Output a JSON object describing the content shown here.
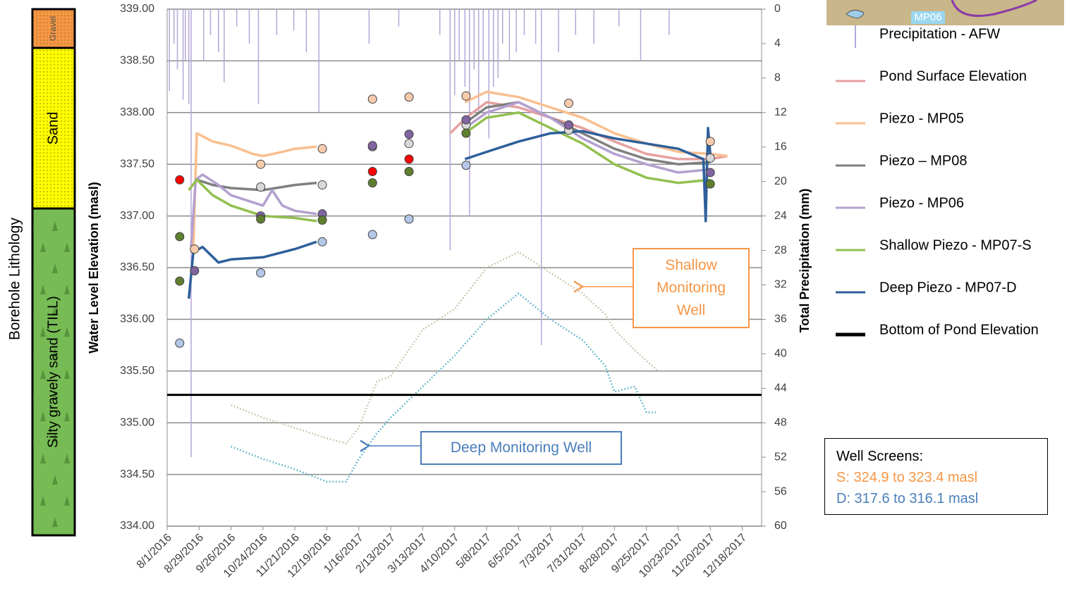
{
  "chart_data": {
    "type": "line",
    "y_title": "Water Level Elevation (masl)",
    "y2_title": "Total Precipitation (mm)",
    "xlim": [
      "8/1/2016",
      "1/4/2018"
    ],
    "xticks": [
      "8/1/2016",
      "8/29/2016",
      "9/26/2016",
      "10/24/2016",
      "11/21/2016",
      "12/19/2016",
      "1/16/2017",
      "2/13/2017",
      "3/13/2017",
      "4/10/2017",
      "5/8/2017",
      "6/5/2017",
      "7/3/2017",
      "7/31/2017",
      "8/28/2017",
      "9/25/2017",
      "10/23/2017",
      "11/20/2017",
      "12/18/2017"
    ],
    "ylim": [
      334,
      339
    ],
    "yticks": [
      {
        "value": 334,
        "label": "334.00"
      },
      {
        "value": 334.5,
        "label": "334.50"
      },
      {
        "value": 335,
        "label": "335.00"
      },
      {
        "value": 335.5,
        "label": "335.50"
      },
      {
        "value": 336,
        "label": "336.00"
      },
      {
        "value": 336.5,
        "label": "336.50"
      },
      {
        "value": 337,
        "label": "337.00"
      },
      {
        "value": 337.5,
        "label": "337.50"
      },
      {
        "value": 338,
        "label": "338.00"
      },
      {
        "value": 338.5,
        "label": "338.50"
      },
      {
        "value": 339,
        "label": "339.00"
      }
    ],
    "y2lim": [
      0,
      60
    ],
    "y2_inverted": true,
    "y2ticks": [
      0,
      4,
      8,
      12,
      16,
      20,
      24,
      28,
      32,
      36,
      40,
      44,
      48,
      52,
      56,
      60
    ],
    "grid": true,
    "precipitation": {
      "name": "Precipitation - AFW",
      "color": "#b4a7d6",
      "axis": "y2",
      "x": [
        "8/3/2016",
        "8/7/2016",
        "8/10/2016",
        "8/15/2016",
        "8/17/2016",
        "8/20/2016",
        "8/22/2016",
        "9/2/2016",
        "9/8/2016",
        "9/15/2016",
        "9/20/2016",
        "10/1/2016",
        "10/12/2016",
        "10/20/2016",
        "11/5/2016",
        "11/20/2016",
        "12/1/2016",
        "12/12/2016",
        "1/25/2017",
        "2/20/2017",
        "3/28/2017",
        "4/6/2017",
        "4/10/2017",
        "4/14/2017",
        "4/19/2017",
        "4/23/2017",
        "4/27/2017",
        "5/1/2017",
        "5/5/2017",
        "5/10/2017",
        "5/14/2017",
        "5/18/2017",
        "5/22/2017",
        "5/28/2017",
        "6/3/2017",
        "6/10/2017",
        "6/20/2017",
        "6/25/2017",
        "7/10/2017",
        "7/25/2017",
        "8/10/2017",
        "9/1/2017",
        "9/20/2017",
        "10/15/2017"
      ],
      "values": [
        9.5,
        4,
        7,
        10.5,
        6,
        11,
        52,
        6,
        3,
        5,
        8.5,
        2,
        4,
        11,
        3,
        2.5,
        5,
        12,
        4,
        2,
        3,
        28,
        10,
        6,
        9,
        24,
        7,
        12,
        6,
        15,
        9,
        8,
        4,
        6,
        5,
        3,
        4,
        39,
        5,
        3,
        4,
        2,
        6,
        3
      ]
    },
    "series": [
      {
        "name": "Pond Surface Elevation",
        "color": "#e6a0a0",
        "x": [
          "4/6/2017",
          "4/20/2017",
          "5/8/2017",
          "6/5/2017",
          "7/3/2017",
          "7/31/2017",
          "8/28/2017",
          "9/25/2017",
          "10/23/2017",
          "11/20/2017",
          "12/5/2017"
        ],
        "values": [
          337.8,
          337.95,
          338.1,
          338.05,
          337.95,
          337.85,
          337.72,
          337.6,
          337.55,
          337.55,
          337.58
        ],
        "manual": {
          "color": "#ff0000",
          "x": [
            "8/12/2016",
            "1/28/2017",
            "3/1/2017"
          ],
          "values": [
            337.35,
            337.43,
            337.55
          ]
        }
      },
      {
        "name": "Piezo - MP05",
        "color": "#f9bf8f",
        "x": [
          "8/24/2016",
          "8/27/2016",
          "9/10/2016",
          "9/26/2016",
          "10/15/2016",
          "10/24/2016",
          "11/10/2016",
          "11/21/2016",
          "12/10/2016",
          null,
          "4/19/2017",
          "5/8/2017",
          "6/5/2017",
          "7/3/2017",
          "7/31/2017",
          "8/28/2017",
          "9/25/2017",
          "10/23/2017",
          "11/20/2017",
          "12/5/2017"
        ],
        "values": [
          336.7,
          337.8,
          337.72,
          337.68,
          337.6,
          337.58,
          337.62,
          337.65,
          337.67,
          null,
          338.1,
          338.2,
          338.15,
          338.05,
          337.95,
          337.8,
          337.7,
          337.62,
          337.6,
          337.58
        ],
        "manual": {
          "color": "#f8cbad",
          "x": [
            "8/25/2016",
            "10/22/2016",
            "12/15/2016",
            "1/28/2017",
            "3/1/2017",
            "4/20/2017",
            "7/19/2017",
            "11/20/2017"
          ],
          "values": [
            336.68,
            337.5,
            337.65,
            338.13,
            338.15,
            338.16,
            338.09,
            337.72
          ]
        }
      },
      {
        "name": "Piezo – MP08",
        "color": "#7f7f7f",
        "x": [
          "8/27/2016",
          "9/10/2016",
          "9/26/2016",
          "10/24/2016",
          "11/21/2016",
          "12/10/2016",
          null,
          "4/19/2017",
          "5/8/2017",
          "6/5/2017",
          "7/3/2017",
          "7/31/2017",
          "8/28/2017",
          "9/25/2017",
          "10/23/2017",
          "11/20/2017"
        ],
        "values": [
          337.35,
          337.3,
          337.27,
          337.25,
          337.3,
          337.32,
          null,
          337.9,
          338.05,
          338.1,
          337.95,
          337.8,
          337.65,
          337.55,
          337.5,
          337.52
        ],
        "manual": {
          "color": "#d9d9d9",
          "x": [
            "10/22/2016",
            "12/15/2016",
            "1/28/2017",
            "3/1/2017",
            "4/20/2017",
            "7/19/2017",
            "11/20/2017"
          ],
          "values": [
            337.28,
            337.3,
            337.67,
            337.7,
            337.88,
            337.83,
            337.56
          ]
        }
      },
      {
        "name": "Piezo - MP06",
        "color": "#b4a0d0",
        "x": [
          "8/22/2016",
          "8/26/2016",
          "9/1/2016",
          "9/15/2016",
          "9/26/2016",
          "10/24/2016",
          "11/1/2016",
          "11/10/2016",
          "11/21/2016",
          "12/10/2016",
          null,
          "4/19/2017",
          "5/8/2017",
          "6/5/2017",
          "7/3/2017",
          "7/31/2017",
          "8/28/2017",
          "9/25/2017",
          "10/23/2017",
          "11/20/2017"
        ],
        "values": [
          336.7,
          337.35,
          337.4,
          337.3,
          337.2,
          337.1,
          337.25,
          337.1,
          337.05,
          337.02,
          null,
          337.85,
          338.0,
          338.1,
          337.95,
          337.75,
          337.6,
          337.5,
          337.42,
          337.45
        ],
        "manual": {
          "color": "#8064a2",
          "x": [
            "8/25/2016",
            "10/22/2016",
            "12/15/2016",
            "1/28/2017",
            "3/1/2017",
            "4/20/2017",
            "7/19/2017",
            "11/20/2017"
          ],
          "values": [
            336.47,
            337.0,
            337.02,
            337.68,
            337.79,
            337.93,
            337.88,
            337.42
          ]
        }
      },
      {
        "name": "Shallow Piezo - MP07-S",
        "color": "#92c050",
        "x": [
          "8/20/2016",
          "8/27/2016",
          "9/10/2016",
          "9/26/2016",
          "10/24/2016",
          "11/21/2016",
          "12/10/2016",
          null,
          "4/19/2017",
          "5/8/2017",
          "6/5/2017",
          "7/3/2017",
          "7/31/2017",
          "8/28/2017",
          "9/25/2017",
          "10/23/2017",
          "11/20/2017"
        ],
        "values": [
          337.25,
          337.35,
          337.2,
          337.1,
          337.0,
          336.98,
          336.95,
          null,
          337.8,
          337.95,
          338.0,
          337.85,
          337.7,
          337.5,
          337.37,
          337.32,
          337.35
        ],
        "manual": {
          "color": "#5f7f2f",
          "x": [
            "8/12/2016",
            "8/12/2016",
            "10/22/2016",
            "12/15/2016",
            "1/28/2017",
            "3/1/2017",
            "4/20/2017",
            "11/20/2017"
          ],
          "values": [
            336.8,
            336.37,
            336.97,
            336.96,
            337.32,
            337.43,
            337.8,
            337.31
          ]
        }
      },
      {
        "name": "Deep Piezo - MP07-D",
        "color": "#2e5f9a",
        "x": [
          "8/20/2016",
          "8/24/2016",
          "9/1/2016",
          "9/15/2016",
          "9/26/2016",
          "10/24/2016",
          "11/21/2016",
          "12/10/2016",
          null,
          "4/19/2017",
          "5/8/2017",
          "6/5/2017",
          "7/3/2017",
          "7/31/2017",
          "8/28/2017",
          "9/25/2017",
          "10/23/2017",
          "11/14/2017",
          "11/16/2017",
          "11/18/2017",
          "11/20/2017"
        ],
        "values": [
          336.2,
          336.65,
          336.7,
          336.55,
          336.58,
          336.6,
          336.68,
          336.75,
          null,
          337.55,
          337.62,
          337.72,
          337.8,
          337.82,
          337.75,
          337.7,
          337.65,
          337.55,
          336.95,
          337.85,
          337.6
        ],
        "manual": {
          "color": "#b4c7e7",
          "x": [
            "8/12/2016",
            "10/22/2016",
            "12/15/2016",
            "1/28/2017",
            "3/1/2017",
            "4/20/2017"
          ],
          "values": [
            335.77,
            336.45,
            336.75,
            336.82,
            336.97,
            337.49
          ]
        }
      }
    ],
    "reference_line": {
      "name": "Bottom of Pond Elevation",
      "color": "#000000",
      "value": 335.27
    },
    "monitoring_wells": [
      {
        "name": "Shallow Monitoring Well",
        "color": "#c4b99a",
        "label_color": "#f79646",
        "x": [
          "9/26/2016",
          "10/24/2016",
          "11/21/2016",
          "12/19/2016",
          "1/5/2017",
          "1/16/2017",
          "2/1/2017",
          "2/13/2017",
          "3/13/2017",
          "4/10/2017",
          "5/8/2017",
          "6/5/2017",
          "7/3/2017",
          "7/31/2017",
          "8/20/2017",
          "8/28/2017",
          "9/15/2017",
          "9/25/2017",
          "10/5/2017"
        ],
        "values": [
          335.17,
          335.05,
          334.95,
          334.85,
          334.8,
          334.95,
          335.4,
          335.45,
          335.9,
          336.1,
          336.5,
          336.65,
          336.45,
          336.25,
          336.05,
          335.9,
          335.7,
          335.6,
          335.5
        ]
      },
      {
        "name": "Deep Monitoring Well",
        "color": "#4bacc6",
        "label_color": "#4a7ebb",
        "x": [
          "9/26/2016",
          "10/24/2016",
          "11/21/2016",
          "12/19/2016",
          "1/5/2017",
          "1/16/2017",
          "2/1/2017",
          "2/13/2017",
          "3/13/2017",
          "4/10/2017",
          "5/8/2017",
          "6/5/2017",
          "7/3/2017",
          "7/31/2017",
          "8/20/2017",
          "8/28/2017",
          "9/15/2017",
          "9/25/2017",
          "10/5/2017"
        ],
        "values": [
          334.77,
          334.65,
          334.55,
          334.43,
          334.43,
          334.65,
          334.9,
          335.05,
          335.35,
          335.65,
          336.0,
          336.25,
          336.0,
          335.8,
          335.55,
          335.3,
          335.35,
          335.1,
          335.1
        ]
      }
    ],
    "well_screens": {
      "title": "Well Screens:",
      "lines": [
        {
          "text": "S: 324.9 to 323.4 masl",
          "color": "#f79646"
        },
        {
          "text": "D: 317.6 to 316.1 masl",
          "color": "#4a7ebb"
        }
      ]
    },
    "lithology": {
      "title": "Borehole Lithology",
      "layers": [
        {
          "name": "Gravel",
          "color": "#f79646"
        },
        {
          "name": "Sand",
          "color": "#ffff00"
        },
        {
          "name": "Silty gravely sand (TILL)",
          "color": "#77bb55"
        }
      ]
    },
    "map_label": "MP06"
  }
}
